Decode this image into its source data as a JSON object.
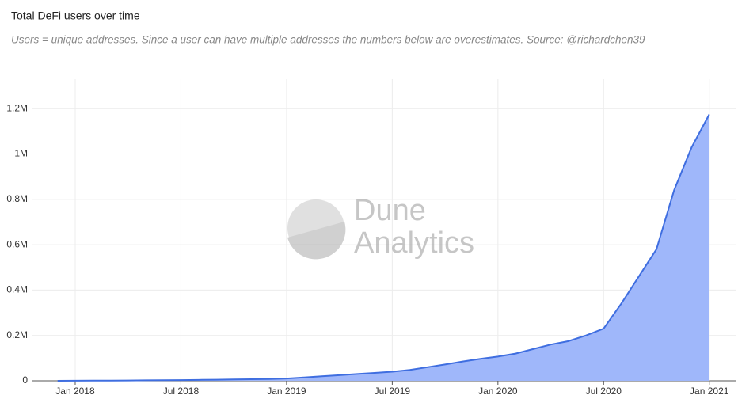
{
  "chart_data": {
    "type": "area",
    "title": "Total DeFi users over time",
    "subtitle": "Users = unique addresses. Since a user can have multiple addresses the numbers below are overestimates. Source: @richardchen39",
    "watermark": [
      "Dune",
      "Analytics"
    ],
    "x": [
      "2017-12",
      "2018-01",
      "2018-02",
      "2018-03",
      "2018-04",
      "2018-05",
      "2018-06",
      "2018-07",
      "2018-08",
      "2018-09",
      "2018-10",
      "2018-11",
      "2018-12",
      "2019-01",
      "2019-02",
      "2019-03",
      "2019-04",
      "2019-05",
      "2019-06",
      "2019-07",
      "2019-08",
      "2019-09",
      "2019-10",
      "2019-11",
      "2019-12",
      "2020-01",
      "2020-02",
      "2020-03",
      "2020-04",
      "2020-05",
      "2020-06",
      "2020-07",
      "2020-08",
      "2020-09",
      "2020-10",
      "2020-11",
      "2020-12",
      "2021-01"
    ],
    "series": [
      {
        "name": "Total DeFi users",
        "color": "#3f6ee0",
        "fill": "#9fb7fa",
        "values": [
          0,
          500,
          800,
          1000,
          1500,
          2000,
          2500,
          3000,
          4000,
          5000,
          6000,
          7000,
          8000,
          10000,
          15000,
          20000,
          25000,
          30000,
          35000,
          40000,
          48000,
          60000,
          72000,
          85000,
          97000,
          107000,
          120000,
          140000,
          160000,
          175000,
          200000,
          230000,
          340000,
          460000,
          580000,
          840000,
          1030000,
          1175000
        ]
      }
    ],
    "xlim": [
      "2017-10",
      "2021-02"
    ],
    "xticks": [
      {
        "value": "2018-01",
        "label": "Jan 2018"
      },
      {
        "value": "2018-07",
        "label": "Jul 2018"
      },
      {
        "value": "2019-01",
        "label": "Jan 2019"
      },
      {
        "value": "2019-07",
        "label": "Jul 2019"
      },
      {
        "value": "2020-01",
        "label": "Jan 2020"
      },
      {
        "value": "2020-07",
        "label": "Jul 2020"
      },
      {
        "value": "2021-01",
        "label": "Jan 2021"
      }
    ],
    "ylim": [
      0,
      1330000
    ],
    "yticks": [
      0,
      {
        "value": 200000,
        "label": "0.2M"
      },
      {
        "value": 400000,
        "label": "0.4M"
      },
      {
        "value": 600000,
        "label": "0.6M"
      },
      {
        "value": 800000,
        "label": "0.8M"
      },
      {
        "value": 1000000,
        "label": "1M"
      },
      {
        "value": 1200000,
        "label": "1.2M"
      }
    ],
    "grid": true
  }
}
